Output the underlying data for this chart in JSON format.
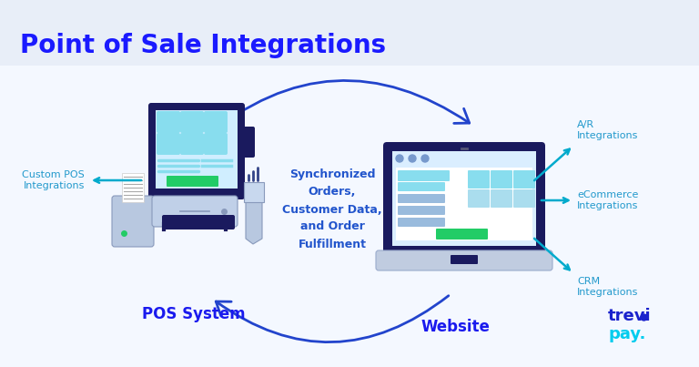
{
  "title": "Point of Sale Integrations",
  "title_color": "#1a1aff",
  "title_fontsize": 20,
  "background_header": "#e8eef8",
  "background_body": "#f4f8ff",
  "arrow_color": "#2244cc",
  "cyan_color": "#00aacc",
  "center_text": "Synchronized\nOrders,\nCustomer Data,\nand Order\nFulfillment",
  "center_text_color": "#2255cc",
  "pos_label": "POS System",
  "website_label": "Website",
  "label_color": "#1a1aee",
  "custom_pos_label": "Custom POS\nIntegrations",
  "ar_label": "A/R\nIntegrations",
  "ecommerce_label": "eCommerce\nIntegrations",
  "crm_label": "CRM\nIntegrations",
  "side_label_color": "#2299cc",
  "trevi_color": "#1a22cc",
  "pay_color": "#00ccee",
  "monitor_dark": "#1a1a5e",
  "monitor_screen": "#c8e8ff",
  "monitor_tile": "#88ddee",
  "monitor_stand": "#8899cc",
  "green_color": "#22cc66",
  "printer_body": "#aabbdd",
  "drawer_body": "#c8d4ee",
  "scanner_body": "#c8d4ee"
}
